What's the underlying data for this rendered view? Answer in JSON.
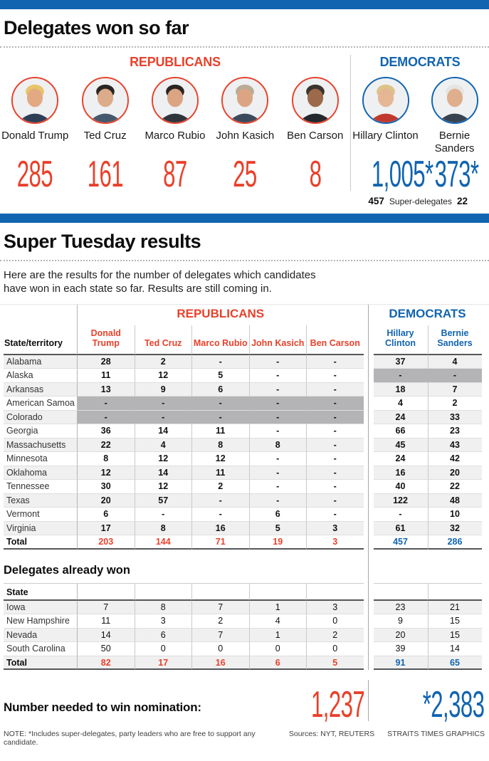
{
  "colors": {
    "republican_red": "#e8412b",
    "democrat_blue": "#1164b0",
    "na_gray": "#b4b4b6",
    "band_gray": "#f0f0f0"
  },
  "header": {
    "title": "Delegates won so far",
    "republicans_label": "REPUBLICANS",
    "democrats_label": "DEMOCRATS",
    "republican_candidates": [
      {
        "name": "Donald Trump",
        "delegates": "285",
        "hair": "#e9c469",
        "skin": "#e3a983",
        "suit": "#2e3f55"
      },
      {
        "name": "Ted Cruz",
        "delegates": "161",
        "hair": "#2b2522",
        "skin": "#dcab89",
        "suit": "#46586b"
      },
      {
        "name": "Marco Rubio",
        "delegates": "87",
        "hair": "#2b2522",
        "skin": "#dba583",
        "suit": "#30353b"
      },
      {
        "name": "John Kasich",
        "delegates": "25",
        "hair": "#b9ab97",
        "skin": "#dba583",
        "suit": "#3c4b5c"
      },
      {
        "name": "Ben Carson",
        "delegates": "8",
        "hair": "#3a332e",
        "skin": "#9c6a4a",
        "suit": "#23282d"
      }
    ],
    "democrat_candidates": [
      {
        "name": "Hillary Clinton",
        "delegates": "1,005*",
        "hair": "#dcc387",
        "skin": "#e5b694",
        "suit": "#c0392f"
      },
      {
        "name": "Bernie Sanders",
        "delegates": "373*",
        "hair": "#e6e4e0",
        "skin": "#dfae8d",
        "suit": "#39434f"
      }
    ],
    "superdelegates": {
      "clinton": "457",
      "label": "Super-delegates",
      "sanders": "22"
    }
  },
  "super_tuesday": {
    "title": "Super Tuesday results",
    "description_line1": "Here are the results for the number of delegates which candidates",
    "description_line2": "have won in each state so far. Results are still coming in.",
    "table": {
      "state_col_header": "State/territory",
      "republicans_label": "REPUBLICANS",
      "democrats_label": "DEMOCRATS",
      "gop_columns": [
        "Donald Trump",
        "Ted Cruz",
        "Marco Rubio",
        "John Kasich",
        "Ben Carson"
      ],
      "dem_columns": [
        "Hillary Clinton",
        "Bernie Sanders"
      ],
      "rows": [
        {
          "state": "Alabama",
          "gop": [
            "28",
            "2",
            "-",
            "-",
            "-"
          ],
          "dem": [
            "37",
            "4"
          ]
        },
        {
          "state": "Alaska",
          "gop": [
            "11",
            "12",
            "5",
            "-",
            "-"
          ],
          "dem": [
            "-",
            "-"
          ],
          "dem_na": true
        },
        {
          "state": "Arkansas",
          "gop": [
            "13",
            "9",
            "6",
            "-",
            "-"
          ],
          "dem": [
            "18",
            "7"
          ]
        },
        {
          "state": "American Samoa",
          "gop": [
            "-",
            "-",
            "-",
            "-",
            "-"
          ],
          "gop_na": true,
          "dem": [
            "4",
            "2"
          ]
        },
        {
          "state": "Colorado",
          "gop": [
            "-",
            "-",
            "-",
            "-",
            "-"
          ],
          "gop_na": true,
          "dem": [
            "24",
            "33"
          ]
        },
        {
          "state": "Georgia",
          "gop": [
            "36",
            "14",
            "11",
            "-",
            "-"
          ],
          "dem": [
            "66",
            "23"
          ]
        },
        {
          "state": "Massachusetts",
          "gop": [
            "22",
            "4",
            "8",
            "8",
            "-"
          ],
          "dem": [
            "45",
            "43"
          ]
        },
        {
          "state": "Minnesota",
          "gop": [
            "8",
            "12",
            "12",
            "-",
            "-"
          ],
          "dem": [
            "24",
            "42"
          ]
        },
        {
          "state": "Oklahoma",
          "gop": [
            "12",
            "14",
            "11",
            "-",
            "-"
          ],
          "dem": [
            "16",
            "20"
          ]
        },
        {
          "state": "Tennessee",
          "gop": [
            "30",
            "12",
            "2",
            "-",
            "-"
          ],
          "dem": [
            "40",
            "22"
          ]
        },
        {
          "state": "Texas",
          "gop": [
            "20",
            "57",
            "-",
            "-",
            "-"
          ],
          "dem": [
            "122",
            "48"
          ]
        },
        {
          "state": "Vermont",
          "gop": [
            "6",
            "-",
            "-",
            "6",
            "-"
          ],
          "dem": [
            "-",
            "10"
          ]
        },
        {
          "state": "Virginia",
          "gop": [
            "17",
            "8",
            "16",
            "5",
            "3"
          ],
          "dem": [
            "61",
            "32"
          ]
        }
      ],
      "total": {
        "label": "Total",
        "gop": [
          "203",
          "144",
          "71",
          "19",
          "3"
        ],
        "dem": [
          "457",
          "286"
        ]
      }
    }
  },
  "already_won": {
    "title": "Delegates already won",
    "state_col_header": "State",
    "rows": [
      {
        "state": "Iowa",
        "gop": [
          "7",
          "8",
          "7",
          "1",
          "3"
        ],
        "dem": [
          "23",
          "21"
        ]
      },
      {
        "state": "New Hampshire",
        "gop": [
          "11",
          "3",
          "2",
          "4",
          "0"
        ],
        "dem": [
          "9",
          "15"
        ]
      },
      {
        "state": "Nevada",
        "gop": [
          "14",
          "6",
          "7",
          "1",
          "2"
        ],
        "dem": [
          "20",
          "15"
        ]
      },
      {
        "state": "South Carolina",
        "gop": [
          "50",
          "0",
          "0",
          "0",
          "0"
        ],
        "dem": [
          "39",
          "14"
        ]
      }
    ],
    "total": {
      "label": "Total",
      "gop": [
        "82",
        "17",
        "16",
        "6",
        "5"
      ],
      "dem": [
        "91",
        "65"
      ]
    }
  },
  "nomination": {
    "label": "Number needed to win nomination:",
    "gop_number": "1,237",
    "dem_number": "*2,383"
  },
  "footer": {
    "note": "NOTE: *Includes super-delegates, party leaders who are free to support any candidate.",
    "sources": "Sources: NYT, REUTERS",
    "credit": "STRAITS TIMES GRAPHICS"
  },
  "chart_data": [
    {
      "type": "table",
      "title": "Delegates won so far",
      "categories": [
        "Donald Trump",
        "Ted Cruz",
        "Marco Rubio",
        "John Kasich",
        "Ben Carson",
        "Hillary Clinton",
        "Bernie Sanders"
      ],
      "values": [
        285,
        161,
        87,
        25,
        8,
        1005,
        373
      ],
      "notes": "* Includes super-delegates: Clinton 457, Sanders 22"
    },
    {
      "type": "table",
      "title": "Super Tuesday results",
      "columns": [
        "State/territory",
        "Donald Trump",
        "Ted Cruz",
        "Marco Rubio",
        "John Kasich",
        "Ben Carson",
        "Hillary Clinton",
        "Bernie Sanders"
      ],
      "rows": [
        [
          "Alabama",
          "28",
          "2",
          "-",
          "-",
          "-",
          "37",
          "4"
        ],
        [
          "Alaska",
          "11",
          "12",
          "5",
          "-",
          "-",
          "-",
          "-"
        ],
        [
          "Arkansas",
          "13",
          "9",
          "6",
          "-",
          "-",
          "18",
          "7"
        ],
        [
          "American Samoa",
          "-",
          "-",
          "-",
          "-",
          "-",
          "4",
          "2"
        ],
        [
          "Colorado",
          "-",
          "-",
          "-",
          "-",
          "-",
          "24",
          "33"
        ],
        [
          "Georgia",
          "36",
          "14",
          "11",
          "-",
          "-",
          "66",
          "23"
        ],
        [
          "Massachusetts",
          "22",
          "4",
          "8",
          "8",
          "-",
          "45",
          "43"
        ],
        [
          "Minnesota",
          "8",
          "12",
          "12",
          "-",
          "-",
          "24",
          "42"
        ],
        [
          "Oklahoma",
          "12",
          "14",
          "11",
          "-",
          "-",
          "16",
          "20"
        ],
        [
          "Tennessee",
          "30",
          "12",
          "2",
          "-",
          "-",
          "40",
          "22"
        ],
        [
          "Texas",
          "20",
          "57",
          "-",
          "-",
          "-",
          "122",
          "48"
        ],
        [
          "Vermont",
          "6",
          "-",
          "-",
          "6",
          "-",
          "-",
          "10"
        ],
        [
          "Virginia",
          "17",
          "8",
          "16",
          "5",
          "3",
          "61",
          "32"
        ],
        [
          "Total",
          "203",
          "144",
          "71",
          "19",
          "3",
          "457",
          "286"
        ]
      ]
    },
    {
      "type": "table",
      "title": "Delegates already won",
      "columns": [
        "State",
        "Donald Trump",
        "Ted Cruz",
        "Marco Rubio",
        "John Kasich",
        "Ben Carson",
        "Hillary Clinton",
        "Bernie Sanders"
      ],
      "rows": [
        [
          "Iowa",
          "7",
          "8",
          "7",
          "1",
          "3",
          "23",
          "21"
        ],
        [
          "New Hampshire",
          "11",
          "3",
          "2",
          "4",
          "0",
          "9",
          "15"
        ],
        [
          "Nevada",
          "14",
          "6",
          "7",
          "1",
          "2",
          "20",
          "15"
        ],
        [
          "South Carolina",
          "50",
          "0",
          "0",
          "0",
          "0",
          "39",
          "14"
        ],
        [
          "Total",
          "82",
          "17",
          "16",
          "6",
          "5",
          "91",
          "65"
        ]
      ]
    },
    {
      "type": "table",
      "title": "Number needed to win nomination",
      "rows": [
        [
          "Republicans",
          "1,237"
        ],
        [
          "Democrats",
          "*2,383"
        ]
      ]
    }
  ]
}
